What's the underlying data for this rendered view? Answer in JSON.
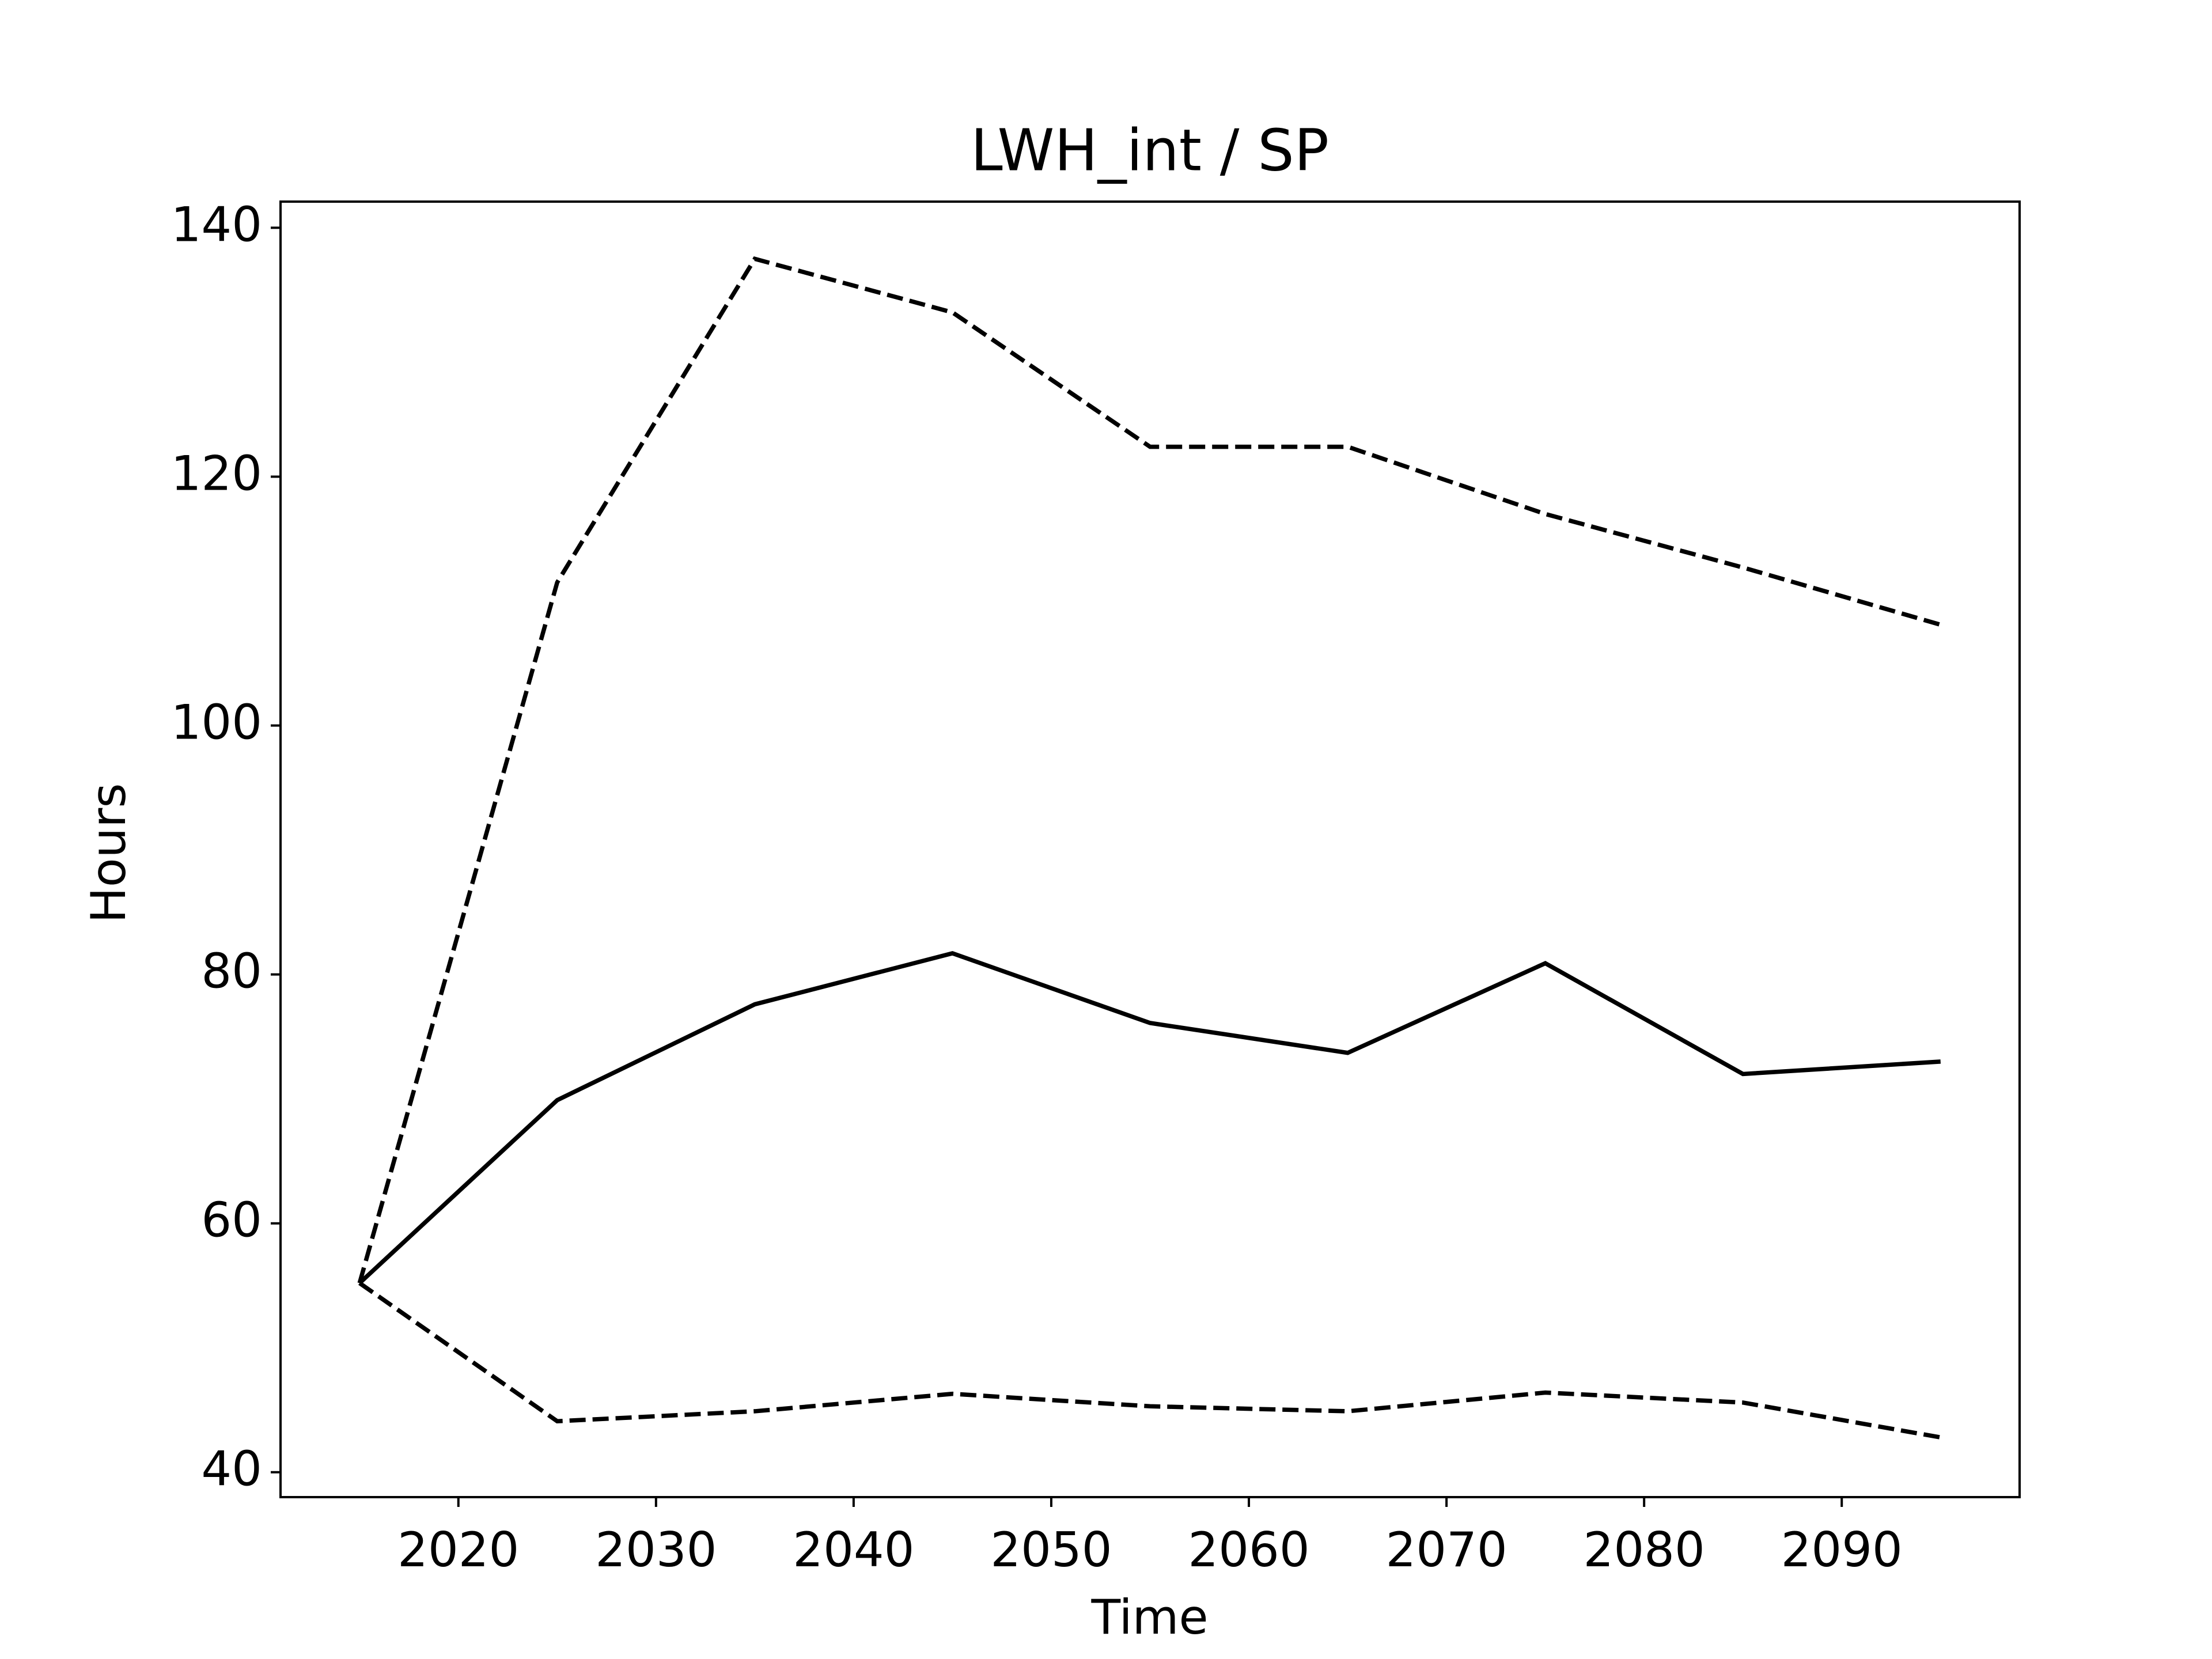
{
  "chart_data": {
    "type": "line",
    "title": "LWH_int / SP",
    "xlabel": "Time",
    "ylabel": "Hours",
    "x": [
      2015,
      2025,
      2035,
      2045,
      2055,
      2065,
      2075,
      2085,
      2095
    ],
    "series": [
      {
        "color": "#000000",
        "linestyle": "solid",
        "values": [
          55.2,
          69.9,
          77.6,
          81.7,
          76.1,
          73.7,
          80.9,
          72.0,
          73.0
        ]
      },
      {
        "color": "#000000",
        "linestyle": "dashed",
        "values": [
          55.2,
          111.5,
          137.5,
          133.2,
          122.4,
          122.4,
          117.0,
          112.7,
          108.1
        ]
      },
      {
        "color": "#000000",
        "linestyle": "dashed",
        "values": [
          55.2,
          44.1,
          44.9,
          46.3,
          45.3,
          44.9,
          46.4,
          45.6,
          42.8
        ]
      }
    ],
    "xlim": [
      2011,
      2099
    ],
    "xticks": [
      2020,
      2030,
      2040,
      2050,
      2060,
      2070,
      2080,
      2090
    ],
    "ylim": [
      38.0,
      142.1
    ],
    "yticks": [
      40,
      60,
      80,
      100,
      120,
      140
    ],
    "grid": false
  }
}
